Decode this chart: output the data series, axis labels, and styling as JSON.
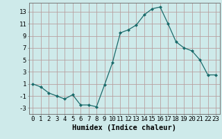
{
  "x": [
    0,
    1,
    2,
    3,
    4,
    5,
    6,
    7,
    8,
    9,
    10,
    11,
    12,
    13,
    14,
    15,
    16,
    17,
    18,
    19,
    20,
    21,
    22,
    23
  ],
  "y": [
    1,
    0.5,
    -0.5,
    -1,
    -1.5,
    -0.8,
    -2.5,
    -2.5,
    -2.8,
    0.8,
    4.5,
    9.5,
    10,
    10.8,
    12.5,
    13.5,
    13.8,
    11,
    8,
    7,
    6.5,
    5,
    2.5,
    2.5
  ],
  "line_color": "#1a6b6b",
  "marker": "D",
  "marker_size": 2,
  "bg_color": "#ceeaea",
  "grid_color": "#b8a0a0",
  "xlabel": "Humidex (Indice chaleur)",
  "xlim": [
    -0.5,
    23.5
  ],
  "ylim": [
    -4,
    14.5
  ],
  "yticks": [
    -3,
    -1,
    1,
    3,
    5,
    7,
    9,
    11,
    13
  ],
  "xtick_labels": [
    "0",
    "1",
    "2",
    "3",
    "4",
    "5",
    "6",
    "7",
    "8",
    "9",
    "10",
    "11",
    "12",
    "13",
    "14",
    "15",
    "16",
    "17",
    "18",
    "19",
    "20",
    "21",
    "22",
    "23"
  ],
  "xlabel_fontsize": 7.5,
  "tick_fontsize": 6.5
}
